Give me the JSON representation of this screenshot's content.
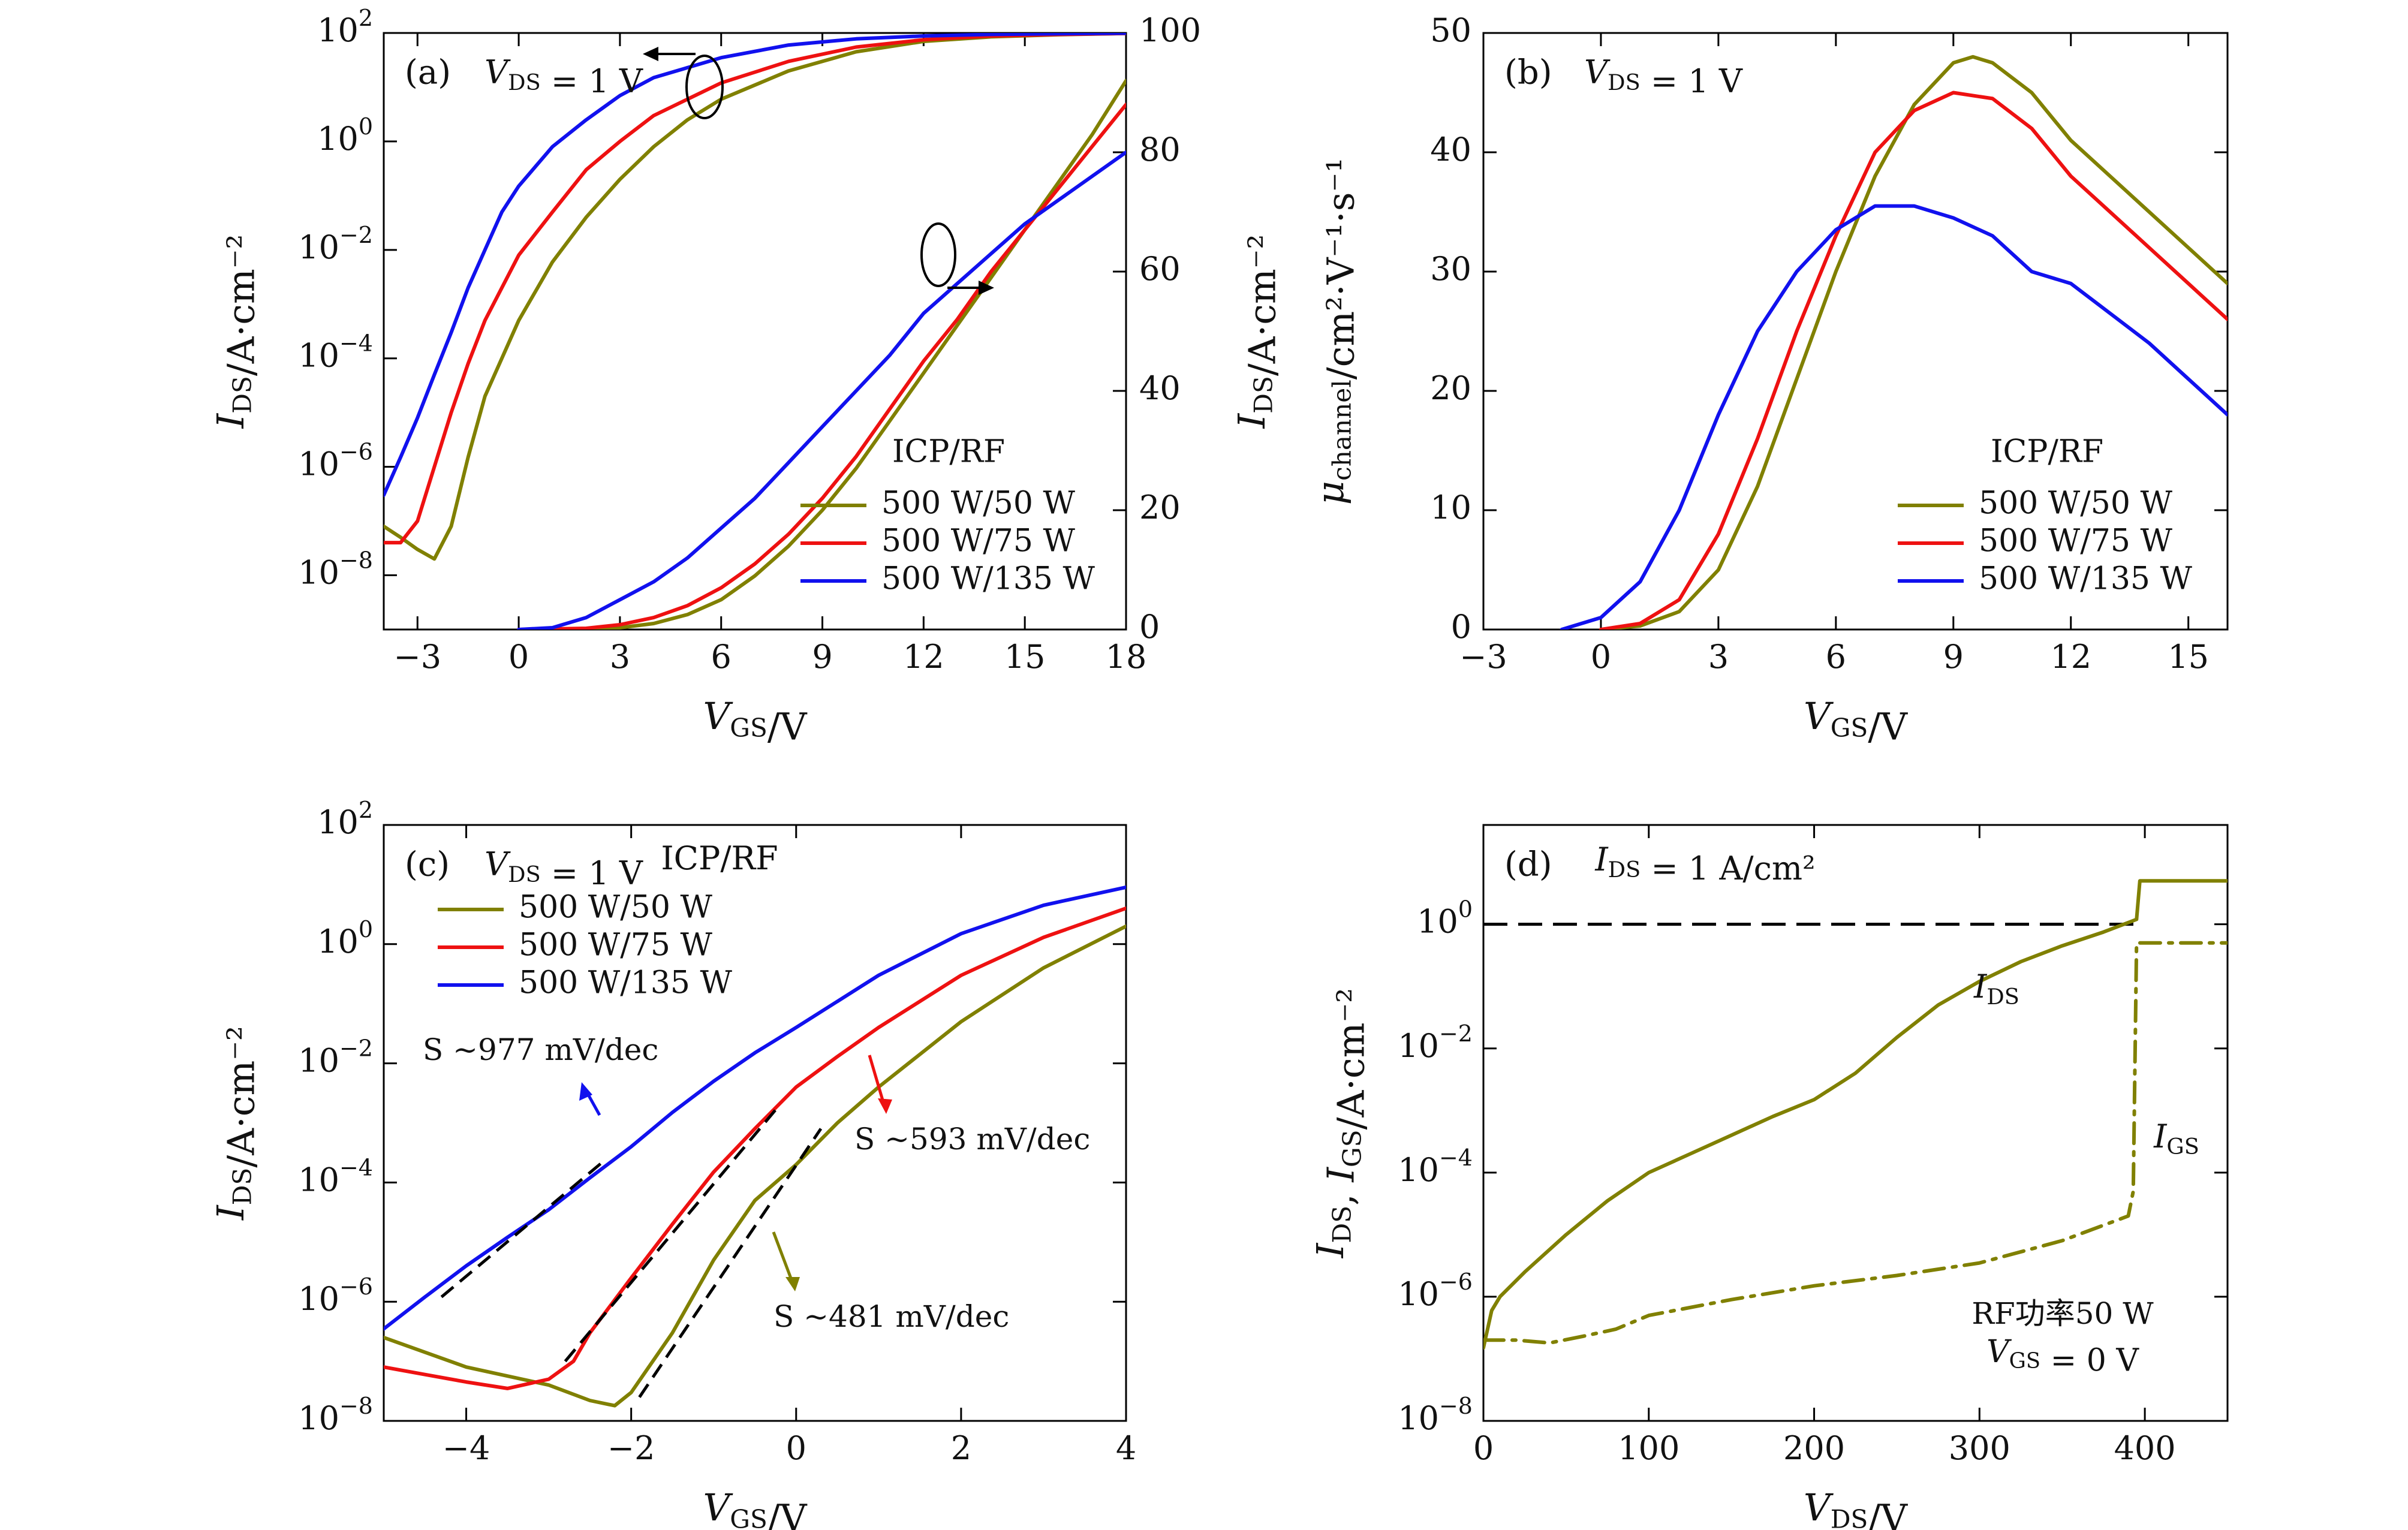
{
  "colors": {
    "olive": "#808000",
    "red": "#ee1111",
    "blue": "#1111ee",
    "black": "#000000"
  },
  "chart_data": [
    {
      "id": "a",
      "type": "line",
      "panel_label": "(a)",
      "annotation_vds": "V_DS = 1 V",
      "xlabel": "V_GS/V",
      "ylabel": "I_DS/A·cm⁻²",
      "y2label": "I_DS/A·cm⁻²",
      "xlim": [
        -4,
        18
      ],
      "ylim_log10": [
        -9,
        2
      ],
      "yscale": "log",
      "y2lim": [
        0,
        100
      ],
      "xticks": [
        {
          "v": -3,
          "l": "−3"
        },
        {
          "v": 0,
          "l": "0"
        },
        {
          "v": 3,
          "l": "3"
        },
        {
          "v": 6,
          "l": "6"
        },
        {
          "v": 9,
          "l": "9"
        },
        {
          "v": 12,
          "l": "12"
        },
        {
          "v": 15,
          "l": "15"
        },
        {
          "v": 18,
          "l": "18"
        }
      ],
      "yticks_log": [
        {
          "e": 2,
          "l": "2"
        },
        {
          "e": 0,
          "l": "0"
        },
        {
          "e": -2,
          "l": "−2"
        },
        {
          "e": -4,
          "l": "−4"
        },
        {
          "e": -6,
          "l": "−6"
        },
        {
          "e": -8,
          "l": "−8"
        }
      ],
      "y2ticks": [
        {
          "v": 0,
          "l": "0"
        },
        {
          "v": 20,
          "l": "20"
        },
        {
          "v": 40,
          "l": "40"
        },
        {
          "v": 60,
          "l": "60"
        },
        {
          "v": 80,
          "l": "80"
        },
        {
          "v": 100,
          "l": "100"
        }
      ],
      "legend_title": "ICP/RF",
      "legend_placement": "bottom-right",
      "series": [
        {
          "name": "500 W/50 W",
          "color": "olive",
          "axis": "log",
          "x": [
            -4,
            -3.5,
            -3,
            -2.5,
            -2,
            -1.5,
            -1,
            0,
            1,
            2,
            3,
            4,
            5,
            6,
            8,
            10,
            12,
            14,
            16,
            18
          ],
          "y": [
            8e-08,
            5e-08,
            3e-08,
            2e-08,
            8e-08,
            1.5e-06,
            2e-05,
            0.0005,
            0.006,
            0.04,
            0.2,
            0.8,
            2.5,
            6,
            20,
            45,
            70,
            85,
            93,
            98
          ]
        },
        {
          "name": "500 W/75 W",
          "color": "red",
          "axis": "log",
          "x": [
            -4,
            -3.5,
            -3,
            -2.5,
            -2,
            -1.5,
            -1,
            0,
            1,
            2,
            3,
            4,
            5,
            6,
            8,
            10,
            12,
            14,
            16,
            18
          ],
          "y": [
            4e-08,
            4e-08,
            1e-07,
            1e-06,
            1e-05,
            8e-05,
            0.0005,
            0.008,
            0.05,
            0.3,
            1,
            3,
            6,
            12,
            30,
            55,
            75,
            88,
            94,
            98
          ]
        },
        {
          "name": "500 W/135 W",
          "color": "blue",
          "axis": "log",
          "x": [
            -4,
            -3.5,
            -3,
            -2.5,
            -2,
            -1.5,
            -1,
            -0.5,
            0,
            1,
            2,
            3,
            4,
            6,
            8,
            10,
            12,
            14,
            16,
            18
          ],
          "y": [
            3e-07,
            1.5e-06,
            8e-06,
            5e-05,
            0.0003,
            0.002,
            0.01,
            0.05,
            0.15,
            0.8,
            2.5,
            7,
            15,
            35,
            60,
            78,
            88,
            94,
            97,
            99
          ]
        },
        {
          "name": "500 W/50 W",
          "color": "olive",
          "axis": "linear",
          "x": [
            0,
            2,
            3,
            4,
            5,
            6,
            7,
            8,
            9,
            10,
            11,
            12,
            13,
            14,
            15,
            16,
            17,
            18
          ],
          "y": [
            0,
            0,
            0.3,
            1,
            2.5,
            5,
            9,
            14,
            20,
            27,
            35,
            43,
            51,
            59,
            67,
            75,
            83,
            92
          ]
        },
        {
          "name": "500 W/75 W",
          "color": "red",
          "axis": "linear",
          "x": [
            0,
            2,
            3,
            4,
            5,
            6,
            7,
            8,
            9,
            10,
            11,
            12,
            13,
            14,
            15,
            16,
            17,
            18
          ],
          "y": [
            0,
            0.2,
            0.8,
            2,
            4,
            7,
            11,
            16,
            22,
            29,
            37,
            45,
            52,
            60,
            67,
            74,
            81,
            88
          ]
        },
        {
          "name": "500 W/135 W",
          "color": "blue",
          "axis": "linear",
          "x": [
            0,
            1,
            2,
            3,
            4,
            5,
            6,
            7,
            8,
            9,
            10,
            11,
            12,
            13,
            14,
            15,
            16,
            17,
            18
          ],
          "y": [
            0,
            0.3,
            2,
            5,
            8,
            12,
            17,
            22,
            28,
            34,
            40,
            46,
            53,
            58,
            63,
            68,
            72,
            76,
            80
          ]
        }
      ]
    },
    {
      "id": "b",
      "type": "line",
      "panel_label": "(b)",
      "annotation_vds": "V_DS = 1 V",
      "xlabel": "V_GS/V",
      "ylabel": "μ_channel/cm²·V⁻¹·s⁻¹",
      "xlim": [
        -3,
        16
      ],
      "ylim": [
        0,
        50
      ],
      "xticks": [
        {
          "v": -3,
          "l": "−3"
        },
        {
          "v": 0,
          "l": "0"
        },
        {
          "v": 3,
          "l": "3"
        },
        {
          "v": 6,
          "l": "6"
        },
        {
          "v": 9,
          "l": "9"
        },
        {
          "v": 12,
          "l": "12"
        },
        {
          "v": 15,
          "l": "15"
        }
      ],
      "yticks": [
        {
          "v": 0,
          "l": "0"
        },
        {
          "v": 10,
          "l": "10"
        },
        {
          "v": 20,
          "l": "20"
        },
        {
          "v": 30,
          "l": "30"
        },
        {
          "v": 40,
          "l": "40"
        },
        {
          "v": 50,
          "l": "50"
        }
      ],
      "legend_title": "ICP/RF",
      "legend_placement": "bottom-right",
      "series": [
        {
          "name": "500 W/50 W",
          "color": "olive",
          "x": [
            0,
            1,
            2,
            3,
            4,
            5,
            6,
            7,
            8,
            9,
            9.5,
            10,
            11,
            12,
            13,
            14,
            15,
            16
          ],
          "y": [
            0,
            0.3,
            1.5,
            5,
            12,
            21,
            30,
            38,
            44,
            47.5,
            48,
            47.5,
            45,
            41,
            38,
            35,
            32,
            29
          ]
        },
        {
          "name": "500 W/75 W",
          "color": "red",
          "x": [
            0,
            1,
            2,
            3,
            4,
            5,
            6,
            7,
            8,
            9,
            10,
            11,
            12,
            13,
            14,
            15,
            16
          ],
          "y": [
            0,
            0.5,
            2.5,
            8,
            16,
            25,
            33,
            40,
            43.5,
            45,
            44.5,
            42,
            38,
            35,
            32,
            29,
            26
          ]
        },
        {
          "name": "500 W/135 W",
          "color": "blue",
          "x": [
            -1,
            0,
            1,
            2,
            3,
            4,
            5,
            6,
            7,
            8,
            9,
            10,
            11,
            12,
            13,
            14,
            15,
            16
          ],
          "y": [
            0,
            1,
            4,
            10,
            18,
            25,
            30,
            33.5,
            35.5,
            35.5,
            34.5,
            33,
            30,
            29,
            26.5,
            24,
            21,
            18
          ]
        }
      ]
    },
    {
      "id": "c",
      "type": "line",
      "panel_label": "(c)",
      "annotation_vds": "V_DS = 1 V",
      "legend_title": "ICP/RF",
      "xlabel": "V_GS/V",
      "ylabel": "I_DS/A·cm⁻²",
      "xlim": [
        -5,
        4
      ],
      "ylim_log10": [
        -8,
        2
      ],
      "yscale": "log",
      "xticks": [
        {
          "v": -4,
          "l": "−4"
        },
        {
          "v": -2,
          "l": "−2"
        },
        {
          "v": 0,
          "l": "0"
        },
        {
          "v": 2,
          "l": "2"
        },
        {
          "v": 4,
          "l": "4"
        }
      ],
      "yticks_log": [
        {
          "e": 2,
          "l": "2"
        },
        {
          "e": 0,
          "l": "0"
        },
        {
          "e": -2,
          "l": "−2"
        },
        {
          "e": -4,
          "l": "−4"
        },
        {
          "e": -6,
          "l": "−6"
        },
        {
          "e": -8,
          "l": "−8"
        }
      ],
      "legend_placement": "top-left",
      "series": [
        {
          "name": "500 W/50 W",
          "color": "olive",
          "x": [
            -5,
            -4,
            -3,
            -2.5,
            -2.2,
            -2,
            -1.5,
            -1,
            -0.5,
            0,
            0.5,
            1,
            2,
            3,
            4
          ],
          "y": [
            2.5e-07,
            8e-08,
            4e-08,
            2.2e-08,
            1.8e-08,
            3e-08,
            3e-07,
            5e-06,
            5e-05,
            0.0002,
            0.001,
            0.004,
            0.05,
            0.4,
            2
          ]
        },
        {
          "name": "500 W/75 W",
          "color": "red",
          "x": [
            -5,
            -4.5,
            -4,
            -3.5,
            -3,
            -2.7,
            -2.5,
            -2,
            -1.5,
            -1,
            -0.5,
            0,
            0.5,
            1,
            2,
            3,
            4
          ],
          "y": [
            8e-08,
            6e-08,
            4.5e-08,
            3.5e-08,
            5e-08,
            1e-07,
            3e-07,
            2.5e-06,
            2e-05,
            0.00015,
            0.0008,
            0.004,
            0.013,
            0.04,
            0.3,
            1.3,
            4
          ]
        },
        {
          "name": "500 W/135 W",
          "color": "blue",
          "x": [
            -5,
            -4.5,
            -4,
            -3.5,
            -3,
            -2.5,
            -2,
            -1.5,
            -1,
            -0.5,
            0,
            1,
            2,
            3,
            4
          ],
          "y": [
            3.5e-07,
            1.2e-06,
            4e-06,
            1.2e-05,
            3.5e-05,
            0.00012,
            0.0004,
            0.0015,
            0.005,
            0.015,
            0.04,
            0.3,
            1.5,
            4.5,
            9
          ]
        }
      ],
      "fit_lines": [
        {
          "x": [
            -4.3,
            -2.3
          ],
          "y": [
            1.2e-06,
            0.00025
          ],
          "dash": true
        },
        {
          "x": [
            -2.8,
            -0.2
          ],
          "y": [
            1e-07,
            0.002
          ],
          "dash": true
        },
        {
          "x": [
            -1.9,
            0.3
          ],
          "y": [
            2.5e-08,
            0.0008
          ],
          "dash": true
        }
      ],
      "annotations": [
        {
          "text": "S ~977 mV/dec",
          "color": "blue"
        },
        {
          "text": "S ~593 mV/dec",
          "color": "red"
        },
        {
          "text": "S ~481 mV/dec",
          "color": "olive"
        }
      ]
    },
    {
      "id": "d",
      "type": "line",
      "panel_label": "(d)",
      "annotation_ids": "I_DS = 1 A/cm²",
      "xlabel": "V_DS/V",
      "ylabel": "I_DS, I_GS/A·cm⁻²",
      "xlim": [
        0,
        450
      ],
      "ylim_log10": [
        -8,
        1.6
      ],
      "yscale": "log",
      "xticks": [
        {
          "v": 0,
          "l": "0"
        },
        {
          "v": 100,
          "l": "100"
        },
        {
          "v": 200,
          "l": "200"
        },
        {
          "v": 300,
          "l": "300"
        },
        {
          "v": 400,
          "l": "400"
        }
      ],
      "yticks_log": [
        {
          "e": 0,
          "l": "0"
        },
        {
          "e": -2,
          "l": "−2"
        },
        {
          "e": -4,
          "l": "−4"
        },
        {
          "e": -6,
          "l": "−6"
        },
        {
          "e": -8,
          "l": "−8"
        }
      ],
      "series": [
        {
          "name": "I_DS",
          "color": "olive",
          "style": "solid",
          "x": [
            0,
            5,
            10,
            25,
            50,
            75,
            100,
            125,
            150,
            175,
            200,
            225,
            250,
            275,
            300,
            325,
            350,
            375,
            395,
            397,
            400,
            425,
            450
          ],
          "y": [
            1.5e-07,
            6e-07,
            1e-06,
            2.5e-06,
            1e-05,
            3.5e-05,
            0.0001,
            0.0002,
            0.0004,
            0.0008,
            0.0015,
            0.004,
            0.015,
            0.05,
            0.12,
            0.25,
            0.45,
            0.75,
            1.2,
            5,
            5,
            5,
            5
          ]
        },
        {
          "name": "I_GS",
          "color": "olive",
          "style": "dashdot",
          "x": [
            0,
            20,
            40,
            60,
            80,
            100,
            150,
            200,
            250,
            300,
            350,
            390,
            393,
            395,
            400,
            425,
            450
          ],
          "y": [
            2e-07,
            2e-07,
            1.8e-07,
            2.3e-07,
            3e-07,
            5e-07,
            9e-07,
            1.5e-06,
            2.2e-06,
            3.5e-06,
            8e-06,
            2e-05,
            5e-05,
            0.5,
            0.5,
            0.5,
            0.5
          ]
        }
      ],
      "reference_line": {
        "y": 1,
        "dash": true,
        "color": "black"
      },
      "annotations": [
        {
          "text": "I_DS"
        },
        {
          "text": "I_GS"
        },
        {
          "text": "RF功率50 W"
        },
        {
          "text": "V_GS = 0 V"
        }
      ]
    }
  ]
}
